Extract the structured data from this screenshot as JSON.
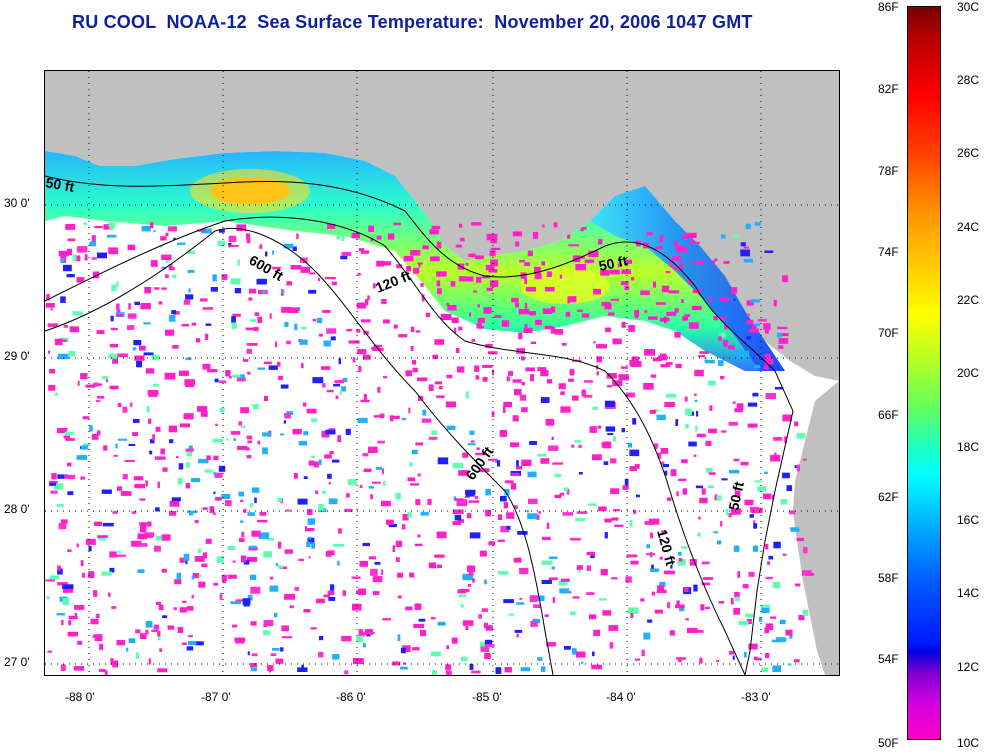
{
  "title": "RU COOL  NOAA-12  Sea Surface Temperature:  November 20, 2006 1047 GMT",
  "map": {
    "latitude_labels": [
      "30 0'",
      "29 0'",
      "28 0'",
      "27 0'"
    ],
    "longitude_labels": [
      "-88 0'",
      "-87 0'",
      "-86 0'",
      "-85 0'",
      "-84 0'",
      "-83 0'"
    ],
    "contour_labels": [
      "50 ft",
      "600 ft",
      "120 ft",
      "50 ft",
      "600 ft",
      "120 ft",
      "50 ft"
    ],
    "colors": {
      "land": "#c0c0c0",
      "cloud": "#ffffff",
      "coastline": "#000000",
      "gridlines": "#000000"
    }
  },
  "colorbar": {
    "fahrenheit_labels": [
      "86F",
      "82F",
      "78F",
      "74F",
      "70F",
      "66F",
      "62F",
      "58F",
      "54F",
      "50F"
    ],
    "celsius_labels": [
      "30C",
      "28C",
      "26C",
      "24C",
      "22C",
      "20C",
      "18C",
      "16C",
      "14C",
      "12C",
      "10C"
    ]
  }
}
